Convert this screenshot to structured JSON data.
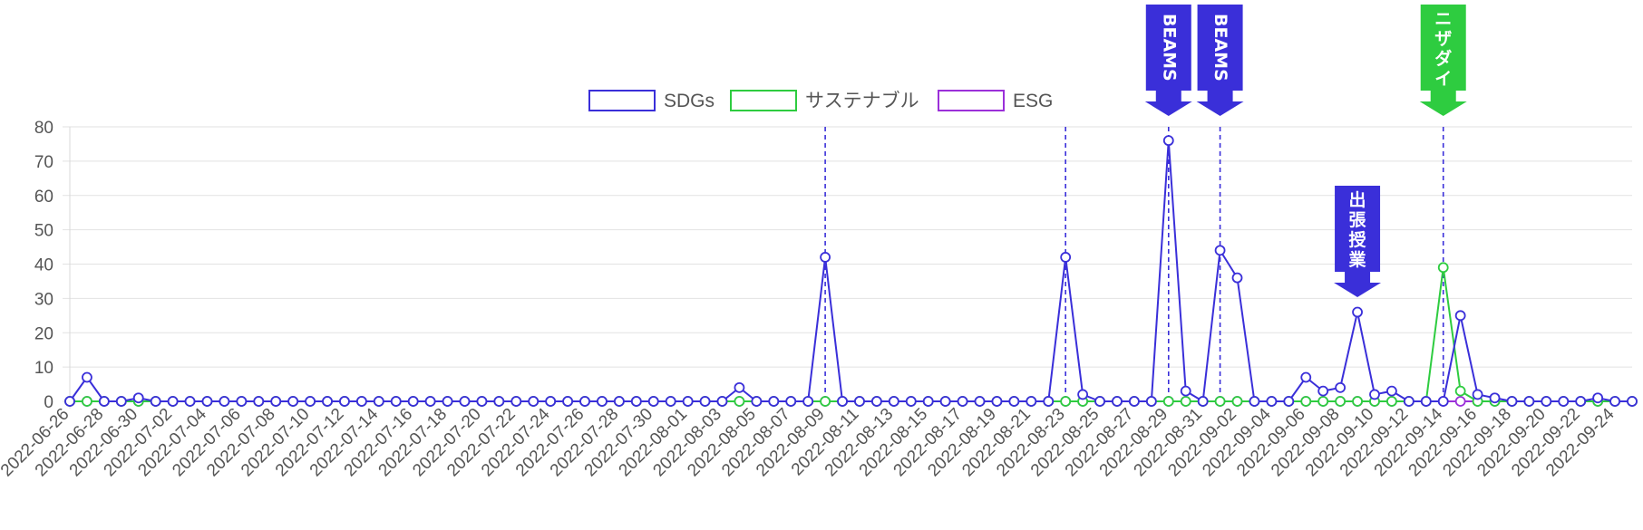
{
  "chart_data": {
    "type": "line",
    "start_date": "2022-06-26",
    "x": [
      "2022-06-26",
      "2022-06-27",
      "2022-06-28",
      "2022-06-29",
      "2022-06-30",
      "2022-07-01",
      "2022-07-02",
      "2022-07-03",
      "2022-07-04",
      "2022-07-05",
      "2022-07-06",
      "2022-07-07",
      "2022-07-08",
      "2022-07-09",
      "2022-07-10",
      "2022-07-11",
      "2022-07-12",
      "2022-07-13",
      "2022-07-14",
      "2022-07-15",
      "2022-07-16",
      "2022-07-17",
      "2022-07-18",
      "2022-07-19",
      "2022-07-20",
      "2022-07-21",
      "2022-07-22",
      "2022-07-23",
      "2022-07-24",
      "2022-07-25",
      "2022-07-26",
      "2022-07-27",
      "2022-07-28",
      "2022-07-29",
      "2022-07-30",
      "2022-07-31",
      "2022-08-01",
      "2022-08-02",
      "2022-08-03",
      "2022-08-04",
      "2022-08-05",
      "2022-08-06",
      "2022-08-07",
      "2022-08-08",
      "2022-08-09",
      "2022-08-10",
      "2022-08-11",
      "2022-08-12",
      "2022-08-13",
      "2022-08-14",
      "2022-08-15",
      "2022-08-16",
      "2022-08-17",
      "2022-08-18",
      "2022-08-19",
      "2022-08-20",
      "2022-08-21",
      "2022-08-22",
      "2022-08-23",
      "2022-08-24",
      "2022-08-25",
      "2022-08-26",
      "2022-08-27",
      "2022-08-28",
      "2022-08-29",
      "2022-08-30",
      "2022-08-31",
      "2022-09-01",
      "2022-09-02",
      "2022-09-03",
      "2022-09-04",
      "2022-09-05",
      "2022-09-06",
      "2022-09-07",
      "2022-09-08",
      "2022-09-09",
      "2022-09-10",
      "2022-09-11",
      "2022-09-12",
      "2022-09-13",
      "2022-09-14",
      "2022-09-15",
      "2022-09-16",
      "2022-09-17",
      "2022-09-18",
      "2022-09-19",
      "2022-09-20",
      "2022-09-21",
      "2022-09-22",
      "2022-09-23",
      "2022-09-24",
      "2022-09-25"
    ],
    "x_tick_labels": [
      "2022-06-26",
      "2022-06-28",
      "2022-06-30",
      "2022-07-02",
      "2022-07-04",
      "2022-07-06",
      "2022-07-08",
      "2022-07-10",
      "2022-07-12",
      "2022-07-14",
      "2022-07-16",
      "2022-07-18",
      "2022-07-20",
      "2022-07-22",
      "2022-07-24",
      "2022-07-26",
      "2022-07-28",
      "2022-07-30",
      "2022-08-01",
      "2022-08-03",
      "2022-08-05",
      "2022-08-07",
      "2022-08-09",
      "2022-08-11",
      "2022-08-13",
      "2022-08-15",
      "2022-08-17",
      "2022-08-19",
      "2022-08-21",
      "2022-08-23",
      "2022-08-25",
      "2022-08-27",
      "2022-08-29",
      "2022-08-31",
      "2022-09-02",
      "2022-09-04",
      "2022-09-06",
      "2022-09-08",
      "2022-09-10",
      "2022-09-12",
      "2022-09-14",
      "2022-09-16",
      "2022-09-18",
      "2022-09-20",
      "2022-09-22",
      "2022-09-24"
    ],
    "y_ticks": [
      0,
      10,
      20,
      30,
      40,
      50,
      60,
      70,
      80
    ],
    "ylim": [
      0,
      80
    ],
    "grid": true,
    "legend_position": "top-center",
    "series": [
      {
        "name": "SDGs",
        "color": "#3a2fd9",
        "points": [
          [
            "2022-06-27",
            7
          ],
          [
            "2022-06-30",
            1
          ],
          [
            "2022-08-04",
            4
          ],
          [
            "2022-08-09",
            42
          ],
          [
            "2022-08-23",
            42
          ],
          [
            "2022-08-24",
            2
          ],
          [
            "2022-08-29",
            76
          ],
          [
            "2022-08-30",
            3
          ],
          [
            "2022-09-01",
            44
          ],
          [
            "2022-09-02",
            36
          ],
          [
            "2022-09-06",
            7
          ],
          [
            "2022-09-07",
            3
          ],
          [
            "2022-09-08",
            4
          ],
          [
            "2022-09-09",
            26
          ],
          [
            "2022-09-10",
            2
          ],
          [
            "2022-09-11",
            3
          ],
          [
            "2022-09-15",
            25
          ],
          [
            "2022-09-16",
            2
          ],
          [
            "2022-09-17",
            1
          ],
          [
            "2022-09-23",
            1
          ]
        ],
        "default_value": 0
      },
      {
        "name": "サステナブル",
        "color": "#2ecc40",
        "points": [
          [
            "2022-09-14",
            39
          ],
          [
            "2022-09-15",
            3
          ]
        ],
        "default_value": 0
      },
      {
        "name": "ESG",
        "color": "#9b30d9",
        "points": [],
        "default_value": 0
      }
    ],
    "event_lines": [
      {
        "date": "2022-08-09",
        "color": "#3a2fd9"
      },
      {
        "date": "2022-08-23",
        "color": "#3a2fd9"
      },
      {
        "date": "2022-08-29",
        "color": "#3a2fd9"
      },
      {
        "date": "2022-09-01",
        "color": "#3a2fd9"
      },
      {
        "date": "2022-09-14",
        "color": "#3a2fd9"
      }
    ],
    "annotations": [
      {
        "label": "BEAMS",
        "date": "2022-08-29",
        "color": "#3a2fd9"
      },
      {
        "label": "BEAMS",
        "date": "2022-09-01",
        "color": "#3a2fd9"
      },
      {
        "label": "ニザダイ",
        "date": "2022-09-14",
        "color": "#2ecc40"
      },
      {
        "label": "出張授業",
        "date": "2022-09-09",
        "color": "#3a2fd9"
      }
    ]
  }
}
